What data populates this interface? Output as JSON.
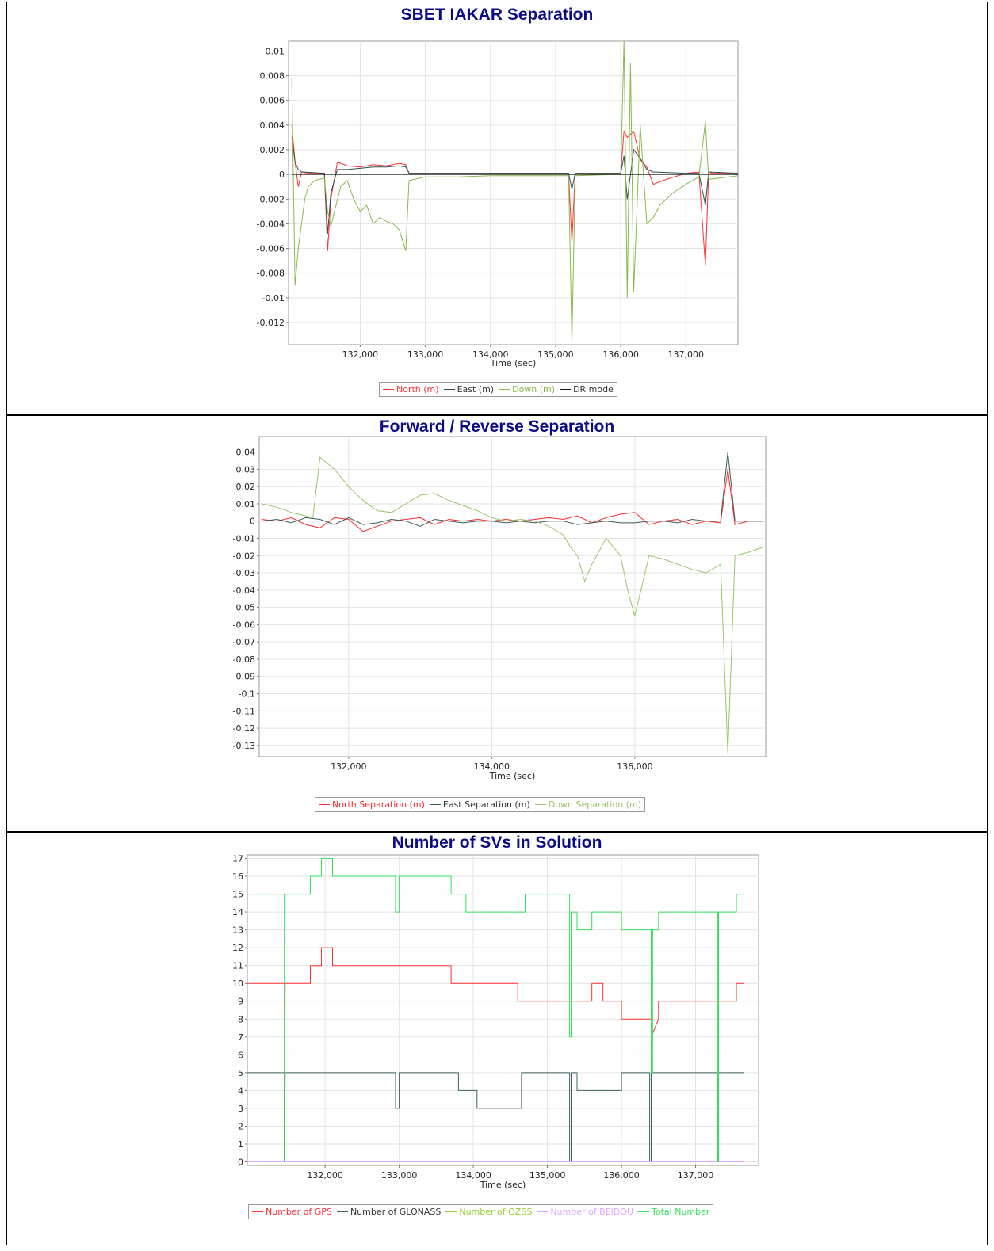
{
  "chart_data": [
    {
      "type": "line",
      "title": "SBET IAKAR Separation",
      "xlabel": "Time (sec)",
      "ylabel": "",
      "xlim": [
        130900,
        137800
      ],
      "ylim": [
        -0.0138,
        0.0108
      ],
      "xticks": [
        132000,
        133000,
        134000,
        135000,
        136000,
        137000
      ],
      "xtick_labels": [
        "132,000",
        "133,000",
        "134,000",
        "135,000",
        "136,000",
        "137,000"
      ],
      "yticks": [
        0.01,
        0.008,
        0.006,
        0.004,
        0.002,
        0,
        -0.002,
        -0.004,
        -0.006,
        -0.008,
        -0.01,
        -0.012
      ],
      "ytick_labels": [
        "0.01",
        "0.008",
        "0.006",
        "0.004",
        "0.002",
        "0",
        "-0.002",
        "-0.004",
        "-0.006",
        "-0.008",
        "-0.01",
        "-0.012"
      ],
      "grid": true,
      "legend_position": "bottom",
      "series": [
        {
          "name": "North (m)",
          "color": "#ff3333",
          "x": [
            130950,
            131000,
            131050,
            131100,
            131200,
            131450,
            131500,
            131550,
            131650,
            131800,
            132000,
            132200,
            132400,
            132600,
            132700,
            132750,
            133000,
            133500,
            134000,
            135000,
            135200,
            135250,
            135300,
            136000,
            136050,
            136100,
            136200,
            136300,
            136400,
            136500,
            136700,
            137000,
            137200,
            137300,
            137350,
            137400,
            137800
          ],
          "y": [
            0.004,
            0.001,
            -0.001,
            0.0002,
            0.0001,
            0.0001,
            -0.0062,
            -0.002,
            0.001,
            0.0007,
            0.0006,
            0.0008,
            0.0007,
            0.0009,
            0.0008,
            0.0001,
            0.0001,
            0.0001,
            0.0001,
            0.0001,
            0.0001,
            -0.0055,
            0.0001,
            0.0001,
            0.0035,
            0.003,
            0.0035,
            0.0012,
            0.0006,
            -0.0008,
            -0.0004,
            0.0001,
            0.0002,
            -0.0074,
            0.0002,
            0.0001,
            0.0001
          ]
        },
        {
          "name": "East (m)",
          "color": "#2f4f4f",
          "x": [
            130950,
            131000,
            131050,
            131100,
            131450,
            131500,
            131550,
            131650,
            131800,
            132000,
            132200,
            132400,
            132600,
            132700,
            132750,
            133000,
            134000,
            135000,
            135200,
            135250,
            135300,
            136000,
            136050,
            136100,
            136200,
            136300,
            136400,
            136500,
            137000,
            137200,
            137300,
            137350,
            137800
          ],
          "y": [
            0.003,
            0.001,
            0.0004,
            0.0002,
            0.0001,
            -0.0048,
            -0.0015,
            0.0004,
            0.0004,
            0.0005,
            0.0006,
            0.0006,
            0.0007,
            0.0006,
            0.0001,
            0.0001,
            0.0001,
            0.0001,
            0.0001,
            -0.0012,
            0.0001,
            0.0001,
            0.0015,
            -0.002,
            0.002,
            0.0013,
            0.0004,
            0.0002,
            0.0001,
            0.0001,
            -0.0025,
            0.0002,
            0.0001
          ]
        },
        {
          "name": "Down (m)",
          "color": "#8ab84f",
          "x": [
            130950,
            131000,
            131050,
            131100,
            131150,
            131200,
            131300,
            131450,
            131500,
            131550,
            131700,
            131800,
            131900,
            132000,
            132100,
            132200,
            132300,
            132400,
            132500,
            132600,
            132700,
            132750,
            133000,
            133500,
            134000,
            135000,
            135200,
            135250,
            135300,
            136000,
            136050,
            136100,
            136150,
            136200,
            136300,
            136400,
            136500,
            136600,
            136800,
            137000,
            137200,
            137300,
            137350,
            137800
          ],
          "y": [
            0.0078,
            -0.009,
            -0.006,
            -0.004,
            -0.002,
            -0.001,
            -0.0005,
            -0.0003,
            -0.003,
            -0.0042,
            -0.001,
            -0.0005,
            -0.002,
            -0.003,
            -0.0025,
            -0.004,
            -0.0035,
            -0.0038,
            -0.004,
            -0.0045,
            -0.0062,
            -0.0005,
            -0.0002,
            -0.0002,
            -0.0001,
            -0.0001,
            -0.0001,
            -0.0136,
            -0.0001,
            0.0,
            0.0108,
            -0.01,
            0.009,
            -0.0095,
            0.004,
            -0.004,
            -0.0035,
            -0.0025,
            -0.0015,
            -0.0008,
            -0.0002,
            0.0043,
            -0.0004,
            -0.0001
          ]
        },
        {
          "name": "DR mode",
          "color": "#111111",
          "x": [
            130950,
            131000,
            131100,
            131500,
            131550,
            132700,
            132750,
            137800
          ],
          "y": [
            0.0,
            0.0,
            0.0,
            0.0,
            0.0,
            0.0,
            0.0,
            0.0
          ]
        }
      ]
    },
    {
      "type": "line",
      "title": "Forward / Reverse Separation",
      "xlabel": "Time (sec)",
      "ylabel": "",
      "xlim": [
        130750,
        137830
      ],
      "ylim": [
        -0.1365,
        0.049
      ],
      "xticks": [
        132000,
        134000,
        136000
      ],
      "xtick_labels": [
        "132,000",
        "134,000",
        "136,000"
      ],
      "yticks": [
        0.04,
        0.03,
        0.02,
        0.01,
        0,
        -0.01,
        -0.02,
        -0.03,
        -0.04,
        -0.05,
        -0.06,
        -0.07,
        -0.08,
        -0.09,
        -0.1,
        -0.11,
        -0.12,
        -0.13
      ],
      "ytick_labels": [
        "0.04",
        "0.03",
        "0.02",
        "0.01",
        "0",
        "-0.01",
        "-0.02",
        "-0.03",
        "-0.04",
        "-0.05",
        "-0.06",
        "-0.07",
        "-0.08",
        "-0.09",
        "-0.1",
        "-0.11",
        "-0.12",
        "-0.13"
      ],
      "grid": true,
      "legend_position": "bottom",
      "series": [
        {
          "name": "North Separation (m)",
          "color": "#ff2a2a",
          "x": [
            130780,
            131000,
            131200,
            131400,
            131600,
            131800,
            132000,
            132200,
            132400,
            132600,
            132800,
            133000,
            133200,
            133400,
            133600,
            133800,
            134000,
            134200,
            134400,
            134600,
            134800,
            135000,
            135200,
            135400,
            135600,
            135800,
            136000,
            136200,
            136400,
            136600,
            136800,
            137000,
            137200,
            137300,
            137400,
            137600,
            137800
          ],
          "y": [
            0.001,
            0.0,
            0.002,
            -0.002,
            -0.004,
            0.002,
            0.001,
            -0.006,
            -0.003,
            0.0,
            0.001,
            0.002,
            -0.002,
            0.001,
            0.0,
            0.001,
            0.0,
            0.001,
            0.0,
            0.001,
            0.002,
            0.001,
            0.003,
            -0.001,
            0.002,
            0.004,
            0.005,
            -0.002,
            0.0,
            0.001,
            -0.002,
            0.0,
            -0.001,
            0.03,
            -0.002,
            0.0,
            0.0
          ]
        },
        {
          "name": "East Separation (m)",
          "color": "#3d5a5a",
          "x": [
            130780,
            131000,
            131200,
            131400,
            131600,
            131800,
            132000,
            132200,
            132400,
            132600,
            132800,
            133000,
            133200,
            133400,
            133600,
            133800,
            134000,
            134200,
            134400,
            134600,
            134800,
            135000,
            135200,
            135400,
            135600,
            135800,
            136000,
            136200,
            136400,
            136600,
            136800,
            137000,
            137200,
            137300,
            137400,
            137600,
            137800
          ],
          "y": [
            0.0,
            0.001,
            -0.001,
            0.002,
            0.001,
            -0.002,
            0.002,
            -0.002,
            -0.001,
            0.001,
            0.0,
            -0.003,
            0.001,
            0.0,
            -0.001,
            0.0,
            0.0,
            -0.001,
            0.0,
            -0.001,
            0.0,
            0.0,
            -0.002,
            -0.001,
            0.0,
            -0.001,
            -0.001,
            0.0,
            0.0,
            -0.001,
            0.001,
            0.0,
            0.0,
            0.04,
            0.0,
            0.0,
            0.0
          ]
        },
        {
          "name": "Down Separation (m)",
          "color": "#9bc46a",
          "x": [
            130780,
            131000,
            131200,
            131400,
            131500,
            131600,
            131800,
            132000,
            132200,
            132400,
            132600,
            132800,
            133000,
            133200,
            133400,
            133600,
            133800,
            134000,
            134200,
            134400,
            134600,
            134800,
            135000,
            135100,
            135200,
            135300,
            135400,
            135600,
            135800,
            135900,
            136000,
            136200,
            136400,
            136600,
            136800,
            137000,
            137200,
            137300,
            137400,
            137600,
            137800
          ],
          "y": [
            0.01,
            0.008,
            0.005,
            0.003,
            0.002,
            0.037,
            0.03,
            0.02,
            0.012,
            0.006,
            0.005,
            0.01,
            0.015,
            0.016,
            0.012,
            0.009,
            0.006,
            0.002,
            0.0,
            0.001,
            0.0,
            -0.003,
            -0.008,
            -0.015,
            -0.02,
            -0.035,
            -0.025,
            -0.01,
            -0.02,
            -0.04,
            -0.055,
            -0.02,
            -0.022,
            -0.025,
            -0.028,
            -0.03,
            -0.025,
            -0.135,
            -0.02,
            -0.018,
            -0.015
          ]
        }
      ]
    },
    {
      "type": "line",
      "title": "Number of SVs in Solution",
      "xlabel": "Time (sec)",
      "ylabel": "",
      "xlim": [
        130950,
        137850
      ],
      "ylim": [
        -0.2,
        17.2
      ],
      "xticks": [
        132000,
        133000,
        134000,
        135000,
        136000,
        137000
      ],
      "xtick_labels": [
        "132,000",
        "133,000",
        "134,000",
        "135,000",
        "136,000",
        "137,000"
      ],
      "yticks": [
        17,
        16,
        15,
        14,
        13,
        12,
        11,
        10,
        9,
        8,
        7,
        6,
        5,
        4,
        3,
        2,
        1,
        0
      ],
      "ytick_labels": [
        "17",
        "16",
        "15",
        "14",
        "13",
        "12",
        "11",
        "10",
        "9",
        "8",
        "7",
        "6",
        "5",
        "4",
        "3",
        "2",
        "1",
        "0"
      ],
      "grid": true,
      "legend_position": "bottom",
      "series": [
        {
          "name": "Number of GPS",
          "color": "#ff3030",
          "x": [
            130950,
            131450,
            131450,
            131460,
            131800,
            131800,
            131950,
            131950,
            132100,
            132100,
            133700,
            133700,
            133900,
            133900,
            134600,
            134600,
            135600,
            135600,
            135750,
            135750,
            136000,
            136000,
            136400,
            136400,
            136500,
            136500,
            137550,
            137550,
            137650
          ],
          "y": [
            10,
            10,
            0,
            10,
            10,
            11,
            11,
            12,
            12,
            11,
            11,
            10,
            10,
            10,
            10,
            9,
            9,
            10,
            10,
            9,
            9,
            8,
            8,
            7,
            8,
            9,
            9,
            10,
            10
          ]
        },
        {
          "name": "Number of GLONASS",
          "color": "#3f6060",
          "x": [
            130950,
            131450,
            131450,
            131460,
            132950,
            132950,
            133000,
            133000,
            133800,
            133800,
            133850,
            133850,
            134050,
            134050,
            134650,
            134650,
            135300,
            135300,
            135320,
            135320,
            135400,
            135400,
            136000,
            136000,
            136380,
            136380,
            136400,
            136400,
            137300,
            137300,
            137310,
            137310,
            137650
          ],
          "y": [
            5,
            5,
            0,
            5,
            5,
            3,
            3,
            5,
            5,
            4,
            4,
            4,
            4,
            3,
            3,
            5,
            5,
            0,
            0,
            5,
            5,
            4,
            4,
            5,
            5,
            0,
            0,
            5,
            5,
            0,
            0,
            5,
            5
          ]
        },
        {
          "name": "Number of QZSS",
          "color": "#9acd32",
          "x": [
            130950,
            137650
          ],
          "y": [
            0,
            0
          ]
        },
        {
          "name": "Number of BEIDOU",
          "color": "#d8a8ff",
          "x": [
            130950,
            137650
          ],
          "y": [
            0,
            0
          ]
        },
        {
          "name": "Total Number",
          "color": "#33e05a",
          "x": [
            130950,
            131450,
            131450,
            131460,
            131800,
            131800,
            131950,
            131950,
            132100,
            132100,
            132950,
            132950,
            133000,
            133000,
            133700,
            133700,
            133900,
            133900,
            134700,
            134700,
            135300,
            135300,
            135320,
            135320,
            135400,
            135400,
            135600,
            135600,
            136000,
            136000,
            136400,
            136400,
            136420,
            136420,
            136500,
            136500,
            137300,
            137300,
            137310,
            137310,
            137550,
            137550,
            137650
          ],
          "y": [
            15,
            15,
            0,
            15,
            15,
            16,
            16,
            17,
            17,
            16,
            16,
            14,
            14,
            16,
            16,
            15,
            15,
            14,
            14,
            15,
            15,
            7,
            7,
            14,
            14,
            13,
            13,
            14,
            14,
            13,
            13,
            5,
            5,
            13,
            13,
            14,
            14,
            0,
            0,
            14,
            14,
            15,
            15
          ]
        }
      ]
    }
  ]
}
